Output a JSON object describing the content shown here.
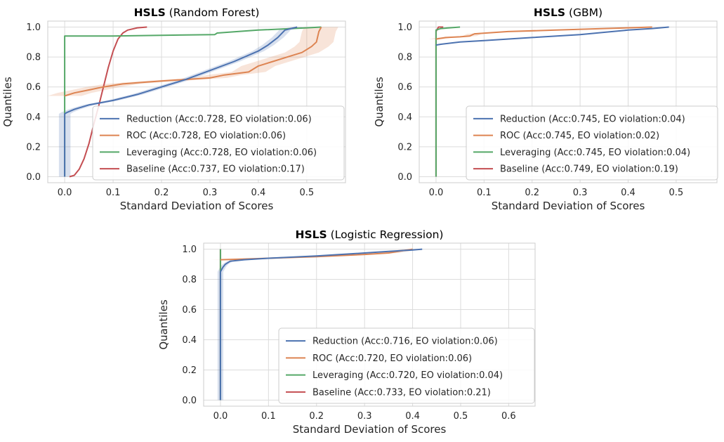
{
  "colors": {
    "Reduction": "#4c72b0",
    "ROC": "#dd8452",
    "Leveraging": "#55a868",
    "Baseline": "#c44e52",
    "plot_background": "#ffffff",
    "grid": "#dcdcdc",
    "frame": "#cccccc"
  },
  "chart_data": [
    {
      "type": "line",
      "title_bold": "HSLS",
      "title_rest": " (Random Forest)",
      "xlabel": "Standard Deviation of Scores",
      "ylabel": "Quantiles",
      "xlim": [
        -0.035,
        0.58
      ],
      "ylim": [
        -0.04,
        1.04
      ],
      "xticks": [
        0.0,
        0.1,
        0.2,
        0.3,
        0.4,
        0.5
      ],
      "xtick_labels": [
        "0.0",
        "0.1",
        "0.2",
        "0.3",
        "0.4",
        "0.5"
      ],
      "yticks": [
        0.0,
        0.2,
        0.4,
        0.6,
        0.8,
        1.0
      ],
      "ytick_labels": [
        "0.0",
        "0.2",
        "0.4",
        "0.6",
        "0.8",
        "1.0"
      ],
      "grid": true,
      "legend_position": "lower-right",
      "series": [
        {
          "name": "Reduction",
          "legend": "Reduction (Acc:0.728, EO violation:0.06)",
          "points": [
            [
              0,
              0
            ],
            [
              0,
              0.42
            ],
            [
              0.005,
              0.43
            ],
            [
              0.02,
              0.45
            ],
            [
              0.05,
              0.48
            ],
            [
              0.1,
              0.51
            ],
            [
              0.15,
              0.55
            ],
            [
              0.2,
              0.6
            ],
            [
              0.25,
              0.65
            ],
            [
              0.3,
              0.71
            ],
            [
              0.35,
              0.77
            ],
            [
              0.4,
              0.84
            ],
            [
              0.42,
              0.88
            ],
            [
              0.44,
              0.93
            ],
            [
              0.455,
              0.98
            ],
            [
              0.48,
              1.0
            ]
          ],
          "band": 0.012
        },
        {
          "name": "ROC",
          "legend": "ROC (Acc:0.728, EO violation:0.06)",
          "points": [
            [
              0,
              0.54
            ],
            [
              0.02,
              0.56
            ],
            [
              0.05,
              0.58
            ],
            [
              0.08,
              0.6
            ],
            [
              0.12,
              0.62
            ],
            [
              0.16,
              0.63
            ],
            [
              0.2,
              0.64
            ],
            [
              0.25,
              0.65
            ],
            [
              0.3,
              0.66
            ],
            [
              0.33,
              0.68
            ],
            [
              0.38,
              0.7
            ],
            [
              0.4,
              0.74
            ],
            [
              0.43,
              0.77
            ],
            [
              0.46,
              0.8
            ],
            [
              0.49,
              0.83
            ],
            [
              0.51,
              0.87
            ],
            [
              0.52,
              0.9
            ],
            [
              0.525,
              0.97
            ],
            [
              0.53,
              1.0
            ]
          ],
          "band": 0.035
        },
        {
          "name": "Leveraging",
          "legend": "Leveraging (Acc:0.728, EO violation:0.06)",
          "points": [
            [
              0,
              0
            ],
            [
              0,
              0.94
            ],
            [
              0.1,
              0.94
            ],
            [
              0.2,
              0.945
            ],
            [
              0.31,
              0.95
            ],
            [
              0.315,
              0.96
            ],
            [
              0.4,
              0.98
            ],
            [
              0.5,
              0.995
            ],
            [
              0.53,
              1.0
            ]
          ],
          "band": 0
        },
        {
          "name": "Baseline",
          "legend": "Baseline (Acc:0.737, EO violation:0.17)",
          "points": [
            [
              0.01,
              0
            ],
            [
              0.02,
              0.01
            ],
            [
              0.03,
              0.05
            ],
            [
              0.04,
              0.12
            ],
            [
              0.05,
              0.22
            ],
            [
              0.06,
              0.35
            ],
            [
              0.07,
              0.47
            ],
            [
              0.08,
              0.6
            ],
            [
              0.09,
              0.73
            ],
            [
              0.1,
              0.84
            ],
            [
              0.11,
              0.92
            ],
            [
              0.12,
              0.96
            ],
            [
              0.13,
              0.98
            ],
            [
              0.15,
              0.995
            ],
            [
              0.17,
              1.0
            ]
          ],
          "band": 0
        }
      ]
    },
    {
      "type": "line",
      "title_bold": "HSLS",
      "title_rest": " (GBM)",
      "xlabel": "Standard Deviation of Scores",
      "ylabel": "Quantiles",
      "xlim": [
        -0.035,
        0.585
      ],
      "ylim": [
        -0.04,
        1.04
      ],
      "xticks": [
        0.0,
        0.1,
        0.2,
        0.3,
        0.4,
        0.5
      ],
      "xtick_labels": [
        "0.0",
        "0.1",
        "0.2",
        "0.3",
        "0.4",
        "0.5"
      ],
      "yticks": [
        0.0,
        0.2,
        0.4,
        0.6,
        0.8,
        1.0
      ],
      "ytick_labels": [
        "0.0",
        "0.2",
        "0.4",
        "0.6",
        "0.8",
        "1.0"
      ],
      "grid": true,
      "legend_position": "lower-right",
      "series": [
        {
          "name": "Reduction",
          "legend": "Reduction (Acc:0.745, EO violation:0.04)",
          "points": [
            [
              0,
              0.88
            ],
            [
              0.01,
              0.885
            ],
            [
              0.05,
              0.9
            ],
            [
              0.1,
              0.91
            ],
            [
              0.2,
              0.93
            ],
            [
              0.3,
              0.95
            ],
            [
              0.35,
              0.965
            ],
            [
              0.4,
              0.98
            ],
            [
              0.45,
              0.99
            ],
            [
              0.485,
              1.0
            ]
          ],
          "band": 0.005
        },
        {
          "name": "ROC",
          "legend": "ROC (Acc:0.745, EO violation:0.02)",
          "points": [
            [
              0,
              0.92
            ],
            [
              0.02,
              0.93
            ],
            [
              0.05,
              0.935
            ],
            [
              0.07,
              0.94
            ],
            [
              0.08,
              0.955
            ],
            [
              0.15,
              0.97
            ],
            [
              0.25,
              0.98
            ],
            [
              0.35,
              0.99
            ],
            [
              0.45,
              1.0
            ]
          ],
          "band": 0.015
        },
        {
          "name": "Leveraging",
          "legend": "Leveraging (Acc:0.745, EO violation:0.04)",
          "points": [
            [
              0,
              0
            ],
            [
              0,
              0.98
            ],
            [
              0.01,
              0.99
            ],
            [
              0.05,
              1.0
            ]
          ],
          "band": 0
        },
        {
          "name": "Baseline",
          "legend": "Baseline (Acc:0.749, EO violation:0.19)",
          "points": [
            [
              0,
              0
            ],
            [
              0,
              0.97
            ],
            [
              0.005,
              1.0
            ],
            [
              0.015,
              1.0
            ]
          ],
          "band": 0
        }
      ]
    },
    {
      "type": "line",
      "title_bold": "HSLS",
      "title_rest": " (Logistic Regression)",
      "xlabel": "Standard Deviation of Scores",
      "ylabel": "Quantiles",
      "xlim": [
        -0.035,
        0.655
      ],
      "ylim": [
        -0.04,
        1.04
      ],
      "xticks": [
        0.0,
        0.1,
        0.2,
        0.3,
        0.4,
        0.5,
        0.6
      ],
      "xtick_labels": [
        "0.0",
        "0.1",
        "0.2",
        "0.3",
        "0.4",
        "0.5",
        "0.6"
      ],
      "yticks": [
        0.0,
        0.2,
        0.4,
        0.6,
        0.8,
        1.0
      ],
      "ytick_labels": [
        "0.0",
        "0.2",
        "0.4",
        "0.6",
        "0.8",
        "1.0"
      ],
      "grid": true,
      "legend_position": "lower-right",
      "series": [
        {
          "name": "Reduction",
          "legend": "Reduction (Acc:0.716, EO violation:0.06)",
          "points": [
            [
              0,
              0
            ],
            [
              0,
              0.85
            ],
            [
              0.005,
              0.88
            ],
            [
              0.01,
              0.9
            ],
            [
              0.02,
              0.92
            ],
            [
              0.05,
              0.93
            ],
            [
              0.1,
              0.94
            ],
            [
              0.2,
              0.955
            ],
            [
              0.3,
              0.975
            ],
            [
              0.35,
              0.985
            ],
            [
              0.4,
              0.995
            ],
            [
              0.42,
              1.0
            ]
          ],
          "band": 0.006
        },
        {
          "name": "ROC",
          "legend": "ROC (Acc:0.720, EO violation:0.06)",
          "points": [
            [
              0,
              0.93
            ],
            [
              0.05,
              0.935
            ],
            [
              0.1,
              0.94
            ],
            [
              0.2,
              0.95
            ],
            [
              0.3,
              0.965
            ],
            [
              0.35,
              0.975
            ],
            [
              0.38,
              0.99
            ],
            [
              0.4,
              1.0
            ]
          ],
          "band": 0.02
        },
        {
          "name": "Leveraging",
          "legend": "Leveraging (Acc:0.720, EO violation:0.04)",
          "points": [
            [
              0,
              0
            ],
            [
              0,
              1.0
            ]
          ],
          "band": 0
        },
        {
          "name": "Baseline",
          "legend": "Baseline (Acc:0.733, EO violation:0.21)",
          "points": [
            [
              0,
              0
            ],
            [
              0,
              1.0
            ]
          ],
          "band": 0
        }
      ]
    }
  ]
}
